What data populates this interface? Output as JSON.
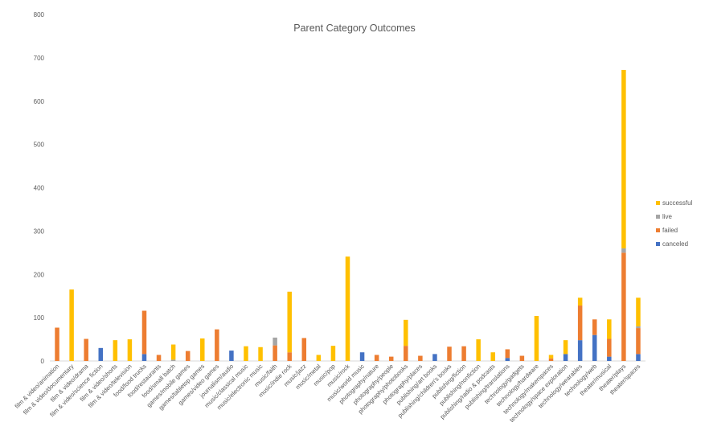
{
  "chart_data": {
    "type": "bar",
    "stacked": true,
    "title": "Parent Category Outcomes",
    "xlabel": "",
    "ylabel": "",
    "ylim": [
      0,
      800
    ],
    "y_ticks": [
      0,
      100,
      200,
      300,
      400,
      500,
      600,
      700,
      800
    ],
    "grid": false,
    "legend_position": "right",
    "categories": [
      "film & video/animation",
      "film & video/documentary",
      "film & video/drama",
      "film & video/science fiction",
      "film & video/shorts",
      "film & video/television",
      "food/food trucks",
      "food/restaurants",
      "food/small batch",
      "games/mobile games",
      "games/tabletop games",
      "games/video games",
      "journalism/audio",
      "music/classical music",
      "music/electronic music",
      "music/faith",
      "music/indie rock",
      "music/jazz",
      "music/metal",
      "music/pop",
      "music/rock",
      "music/world music",
      "photography/nature",
      "photography/people",
      "photography/photobooks",
      "photography/places",
      "publishing/art books",
      "publishing/children's books",
      "publishing/fiction",
      "publishing/nonfiction",
      "publishing/radio & podcasts",
      "publishing/translations",
      "technology/gadgets",
      "technology/hardware",
      "technology/makerspaces",
      "technology/space exploration",
      "technology/wearables",
      "technology/web",
      "theater/musical",
      "theater/plays",
      "theater/spaces"
    ],
    "series": [
      {
        "name": "canceled",
        "color": "#4472c4",
        "values": [
          0,
          0,
          0,
          30,
          0,
          0,
          16,
          0,
          0,
          0,
          0,
          0,
          24,
          0,
          0,
          0,
          0,
          0,
          0,
          0,
          0,
          20,
          0,
          0,
          0,
          0,
          16,
          0,
          0,
          0,
          0,
          7,
          0,
          0,
          0,
          16,
          48,
          60,
          10,
          0,
          16
        ]
      },
      {
        "name": "failed",
        "color": "#ed7d31",
        "values": [
          77,
          0,
          51,
          0,
          0,
          0,
          100,
          14,
          0,
          23,
          0,
          73,
          0,
          0,
          0,
          36,
          20,
          53,
          0,
          0,
          0,
          0,
          14,
          10,
          35,
          12,
          0,
          33,
          34,
          0,
          0,
          20,
          12,
          0,
          6,
          0,
          80,
          36,
          41,
          250,
          60
        ]
      },
      {
        "name": "live",
        "color": "#a5a5a5",
        "values": [
          0,
          0,
          0,
          0,
          0,
          0,
          0,
          0,
          3,
          0,
          0,
          0,
          0,
          0,
          0,
          18,
          0,
          0,
          0,
          0,
          0,
          0,
          0,
          0,
          0,
          0,
          0,
          0,
          0,
          0,
          0,
          0,
          0,
          0,
          0,
          0,
          0,
          0,
          0,
          10,
          4
        ]
      },
      {
        "name": "successful",
        "color": "#ffc000",
        "values": [
          0,
          165,
          0,
          0,
          48,
          50,
          0,
          0,
          35,
          0,
          52,
          0,
          0,
          34,
          32,
          0,
          140,
          0,
          14,
          35,
          241,
          0,
          0,
          0,
          60,
          0,
          0,
          0,
          0,
          50,
          20,
          0,
          0,
          104,
          8,
          32,
          18,
          0,
          45,
          412,
          66
        ]
      }
    ]
  }
}
